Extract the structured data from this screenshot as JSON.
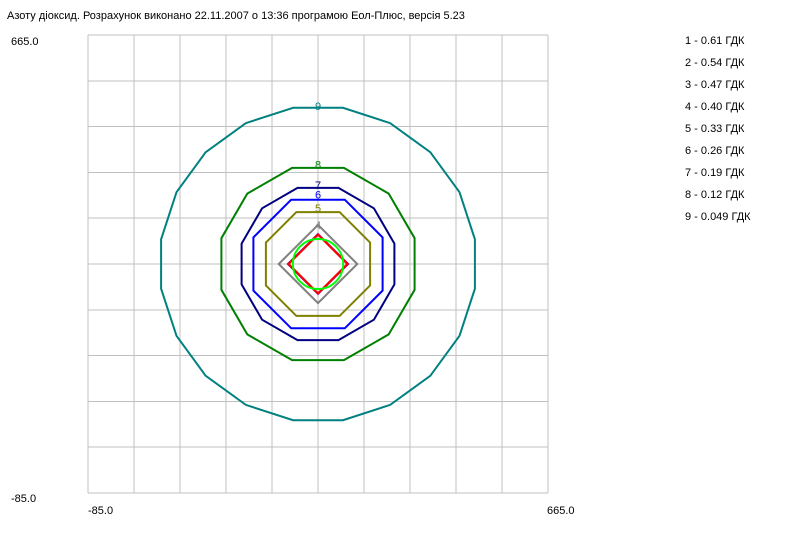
{
  "title": "Азоту діоксид. Розрахунок виконано 22.11.2007 о 13:36 програмою Еол-Плюс, версія 5.23",
  "chart_data": {
    "type": "line",
    "title": "Азоту діоксид. Розрахунок виконано 22.11.2007 о 13:36 програмою Еол-Плюс, версія 5.23",
    "xlim": [
      -85.0,
      665.0
    ],
    "ylim": [
      -85.0,
      665.0
    ],
    "x_tick_labels": [
      "-85.0",
      "665.0"
    ],
    "y_tick_labels": [
      "665.0",
      "-85.0"
    ],
    "grid": true,
    "legend_position": "top-right",
    "center": [
      290.0,
      290.0
    ],
    "legend": [
      "1 - 0.61 ГДК",
      "2 - 0.54 ГДК",
      "3 - 0.47 ГДК",
      "4 - 0.40 ГДК",
      "5 - 0.33 ГДК",
      "6 - 0.26 ГДК",
      "7 - 0.19 ГДК",
      "8 - 0.12 ГДК",
      "9 - 0.049 ГДК"
    ],
    "series": [
      {
        "label": "1",
        "level": 0.61,
        "color": "#00ff00",
        "shape": "circle",
        "radius": 41
      },
      {
        "label": "2",
        "level": 0.54,
        "color": "#800080",
        "shape": "polygon",
        "sides": 4,
        "radius": 49,
        "rotation": 0,
        "label_shown": false
      },
      {
        "label": "3",
        "level": 0.47,
        "color": "#ff0000",
        "shape": "polygon",
        "sides": 4,
        "radius": 48,
        "rotation": 0,
        "label_shown": false
      },
      {
        "label": "4",
        "level": 0.4,
        "color": "#808080",
        "shape": "polygon",
        "sides": 4,
        "radius": 64,
        "rotation": 0,
        "label_shown": true
      },
      {
        "label": "5",
        "level": 0.33,
        "color": "#808000",
        "shape": "polygon",
        "sides": 8,
        "radius": 92,
        "rotation": 22.5,
        "label_shown": true
      },
      {
        "label": "6",
        "level": 0.26,
        "color": "#0000ff",
        "shape": "polygon",
        "sides": 8,
        "radius": 114,
        "rotation": 22.5,
        "label_shown": true
      },
      {
        "label": "7",
        "level": 0.19,
        "color": "#000080",
        "shape": "polygon",
        "sides": 12,
        "radius": 129,
        "rotation": 15,
        "label_shown": true
      },
      {
        "label": "8",
        "level": 0.12,
        "color": "#008000",
        "shape": "polygon",
        "sides": 12,
        "radius": 163,
        "rotation": 15,
        "label_shown": true
      },
      {
        "label": "9",
        "level": 0.049,
        "color": "#008080",
        "shape": "polygon",
        "sides": 20,
        "radius": 259,
        "rotation": 9,
        "label_shown": true
      }
    ]
  }
}
